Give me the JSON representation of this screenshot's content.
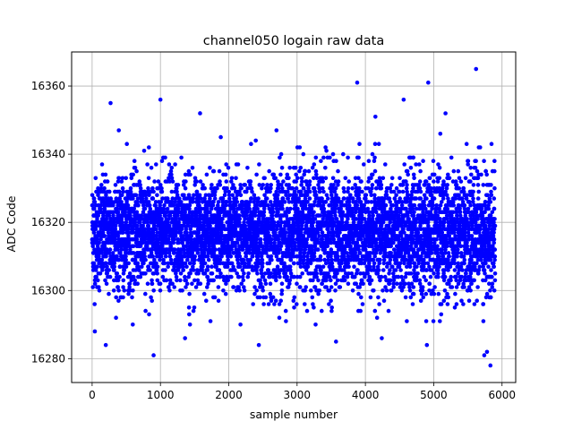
{
  "chart_data": {
    "type": "scatter",
    "title": "channel050 logain raw data",
    "xlabel": "sample number",
    "ylabel": "ADC Code",
    "xlim": [
      -300,
      6200
    ],
    "ylim": [
      16273,
      16370
    ],
    "xticks": [
      0,
      1000,
      2000,
      3000,
      4000,
      5000,
      6000
    ],
    "yticks": [
      16280,
      16300,
      16320,
      16340,
      16360
    ],
    "grid": true,
    "marker_color": "#0000ff",
    "sample_count": 5900,
    "baseline": 16317,
    "spread": 8,
    "notable_points": [
      {
        "x": 3880,
        "y": 16361
      },
      {
        "x": 4920,
        "y": 16361
      },
      {
        "x": 5620,
        "y": 16365
      },
      {
        "x": 1000,
        "y": 16356
      },
      {
        "x": 4560,
        "y": 16356
      },
      {
        "x": 270,
        "y": 16355
      },
      {
        "x": 1580,
        "y": 16352
      },
      {
        "x": 900,
        "y": 16281
      },
      {
        "x": 200,
        "y": 16284
      },
      {
        "x": 2440,
        "y": 16284
      },
      {
        "x": 4900,
        "y": 16284
      },
      {
        "x": 4240,
        "y": 16286
      },
      {
        "x": 5740,
        "y": 16281
      },
      {
        "x": 5780,
        "y": 16282
      },
      {
        "x": 5830,
        "y": 16278
      },
      {
        "x": 3570,
        "y": 16285
      },
      {
        "x": 1360,
        "y": 16286
      },
      {
        "x": 40,
        "y": 16288
      }
    ]
  }
}
